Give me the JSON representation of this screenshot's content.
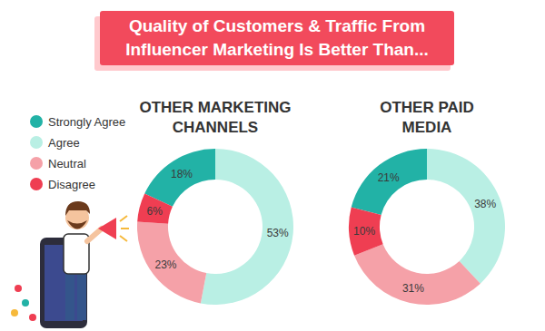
{
  "title": "Quality of Customers & Traffic From Influencer Marketing Is Better Than...",
  "chart_data": [
    {
      "type": "pie",
      "title": "OTHER MARKETING CHANNELS",
      "categories": [
        "Strongly Agree",
        "Agree",
        "Neutral",
        "Disagree"
      ],
      "values": [
        18,
        53,
        23,
        6
      ],
      "value_labels": [
        "18%",
        "53%",
        "23%",
        "6%"
      ],
      "colors": [
        "#22b2a6",
        "#b9efe4",
        "#f5a1a8",
        "#ef3e52"
      ],
      "data_labels": true,
      "legend": "left"
    },
    {
      "type": "pie",
      "title": "OTHER PAID MEDIA",
      "categories": [
        "Strongly Agree",
        "Agree",
        "Neutral",
        "Disagree"
      ],
      "values": [
        21,
        38,
        31,
        10
      ],
      "value_labels": [
        "21%",
        "38%",
        "31%",
        "10%"
      ],
      "colors": [
        "#22b2a6",
        "#b9efe4",
        "#f5a1a8",
        "#ef3e52"
      ],
      "data_labels": true
    }
  ]
}
